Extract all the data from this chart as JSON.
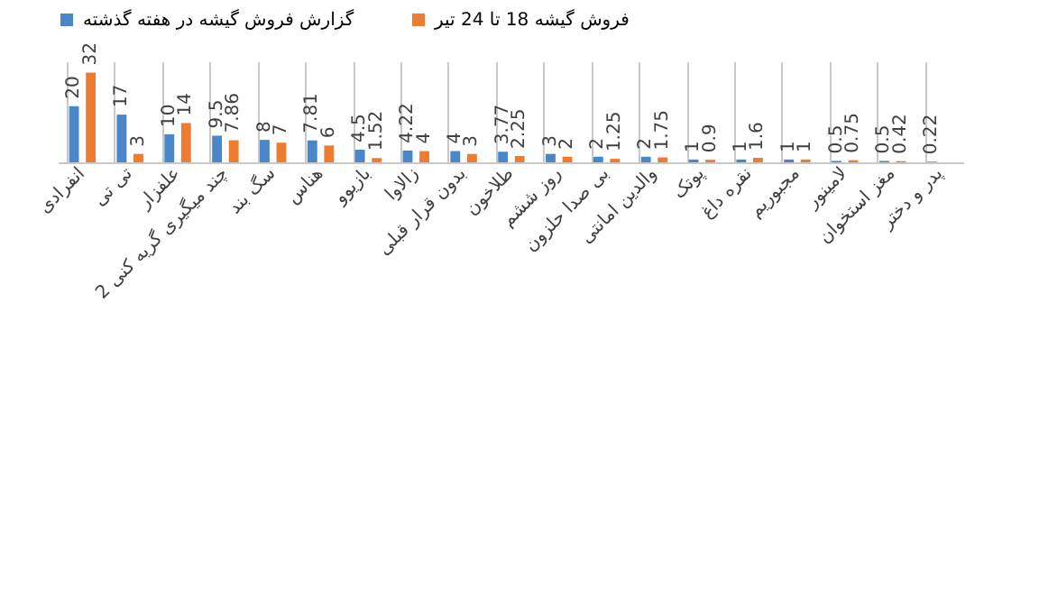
{
  "chart_data": {
    "type": "bar",
    "categories": [
      "انفرادی",
      "تی تی",
      "علفزار",
      "چند میگیری گریه کنی 2",
      "سگ بند",
      "هناس",
      "بازیوو",
      "زالاوا",
      "بدون قرار قبلی",
      "طلاخون",
      "روز ششم",
      "بی صدا حلزون",
      "والدین امانتی",
      "پوتک",
      "نقره داغ",
      "مجبوریم",
      "لامینور",
      "مغز استخوان",
      "پدر و دختر"
    ],
    "series": [
      {
        "name": "گزارش فروش گیشه در هفته گذشته",
        "color": "#4a87c8",
        "values": [
          20,
          17,
          10,
          9.5,
          8,
          7.81,
          4.5,
          4.22,
          4,
          3.77,
          3,
          2,
          2,
          1,
          1,
          1,
          0.5,
          0.5,
          0.22
        ]
      },
      {
        "name": "فروش گیشه 18 تا 24 تیر",
        "color": "#ee7c30",
        "values": [
          32,
          3,
          14,
          7.86,
          7,
          6,
          1.52,
          4,
          3,
          2.25,
          2,
          1.25,
          1.75,
          0.9,
          1.6,
          1,
          0.75,
          0.42,
          null
        ]
      }
    ],
    "ylim": [
      0,
      36
    ],
    "tick_labels": "x",
    "grid": "x",
    "legend": "top",
    "data_labels": true
  }
}
